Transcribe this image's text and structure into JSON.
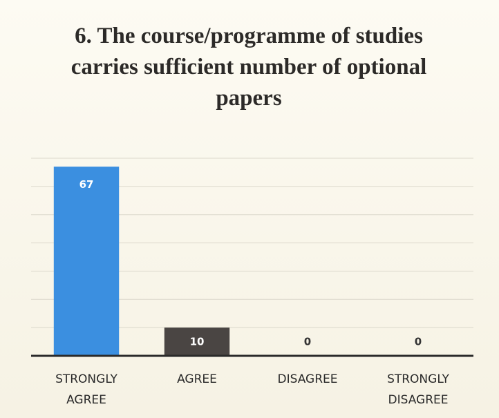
{
  "chart_data": {
    "type": "bar",
    "title": "6. The course/programme of studies carries sufficient number of optional papers",
    "categories": [
      "STRONGLY AGREE",
      "AGREE",
      "DISAGREE",
      "STRONGLY DISAGREE"
    ],
    "values": [
      67,
      10,
      0,
      0
    ],
    "colors": [
      "#3b8fe0",
      "#4a4543",
      "#4a4543",
      "#4a4543"
    ],
    "ylim": [
      0,
      70
    ],
    "yticks": [
      0,
      10,
      20,
      30,
      40,
      50,
      60,
      70
    ],
    "grid": true
  }
}
